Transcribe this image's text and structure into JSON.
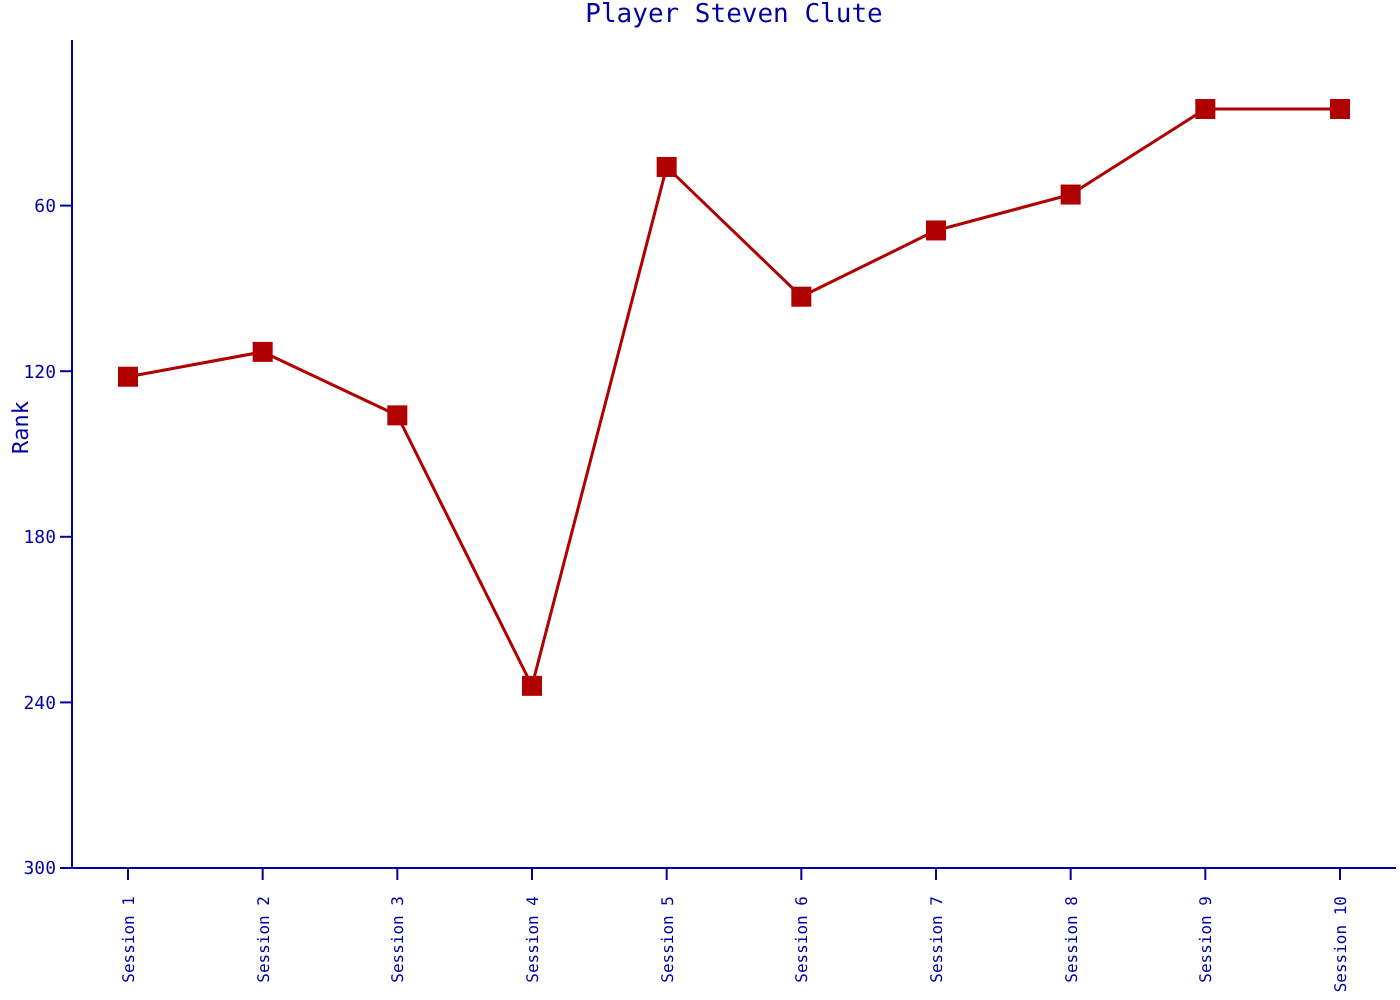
{
  "chart_data": {
    "type": "line",
    "title": "Player Steven Clute",
    "ylabel": "Rank",
    "categories": [
      "Session 1",
      "Session 2",
      "Session 3",
      "Session 4",
      "Session 5",
      "Session 6",
      "Session 7",
      "Session 8",
      "Session 9",
      "Session 10"
    ],
    "series": [
      {
        "color": "#b00000",
        "values": [
          122,
          113,
          136,
          234,
          46,
          93,
          69,
          56,
          25,
          25
        ]
      }
    ],
    "ylim": [
      300,
      0
    ],
    "yticks": [
      60,
      120,
      180,
      240,
      300
    ],
    "grid": false,
    "legend": false,
    "marker": "square",
    "line_style": "solid"
  }
}
